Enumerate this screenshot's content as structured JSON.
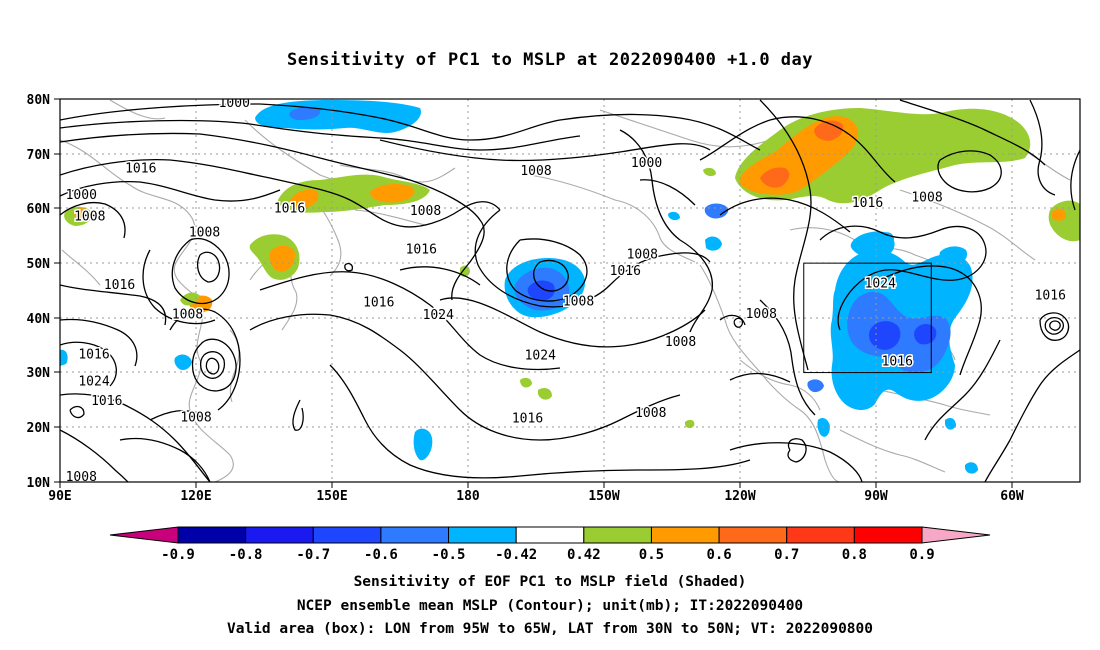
{
  "title": "Sensitivity of PC1 to MSLP at 2022090400 +1.0 day",
  "axes": {
    "lat_labels": [
      "80N",
      "70N",
      "60N",
      "50N",
      "40N",
      "30N",
      "20N",
      "10N"
    ],
    "lon_labels": [
      "90E",
      "120E",
      "150E",
      "180",
      "150W",
      "120W",
      "90W",
      "60W"
    ]
  },
  "contours": {
    "unit": "mb",
    "labels": [
      {
        "text": "1000",
        "lon": 131,
        "lat": 79.3
      },
      {
        "text": "1000",
        "lon": 228,
        "lat": 68.3
      },
      {
        "text": "1000",
        "lon": 95,
        "lat": 62.5
      },
      {
        "text": "1008",
        "lon": 202,
        "lat": 66.8
      },
      {
        "text": "1008",
        "lon": 97,
        "lat": 58.5
      },
      {
        "text": "1008",
        "lon": 124,
        "lat": 55.6
      },
      {
        "text": "1008",
        "lon": 176,
        "lat": 59.5
      },
      {
        "text": "1008",
        "lon": 227,
        "lat": 51.6
      },
      {
        "text": "1008",
        "lon": 212,
        "lat": 43.0
      },
      {
        "text": "1008",
        "lon": 120,
        "lat": 40.6
      },
      {
        "text": "1008",
        "lon": 236,
        "lat": 35.6
      },
      {
        "text": "1008",
        "lon": 255,
        "lat": 40.7
      },
      {
        "text": "1008",
        "lon": 122,
        "lat": 21.8
      },
      {
        "text": "1008",
        "lon": 229,
        "lat": 22.6
      },
      {
        "text": "1008",
        "lon": 294,
        "lat": 62.0
      },
      {
        "text": "1008",
        "lon": 95,
        "lat": 10.9
      },
      {
        "text": "1016",
        "lon": 109,
        "lat": 67.3
      },
      {
        "text": "1016",
        "lon": 144,
        "lat": 60.0
      },
      {
        "text": "1016",
        "lon": 175,
        "lat": 52.5
      },
      {
        "text": "1016",
        "lon": 104,
        "lat": 46.0
      },
      {
        "text": "1016",
        "lon": 165,
        "lat": 42.8
      },
      {
        "text": "1016",
        "lon": 98,
        "lat": 33.3
      },
      {
        "text": "1016",
        "lon": 101,
        "lat": 24.8
      },
      {
        "text": "1016",
        "lon": 223,
        "lat": 48.6
      },
      {
        "text": "1016",
        "lon": 280,
        "lat": 61.0
      },
      {
        "text": "1016",
        "lon": 287,
        "lat": 32.0
      },
      {
        "text": "1016",
        "lon": 323,
        "lat": 44.1
      },
      {
        "text": "1016",
        "lon": 200,
        "lat": 21.6
      },
      {
        "text": "1024",
        "lon": 98,
        "lat": 28.4
      },
      {
        "text": "1024",
        "lon": 179,
        "lat": 40.5
      },
      {
        "text": "1024",
        "lon": 203,
        "lat": 33.1
      },
      {
        "text": "1024",
        "lon": 283,
        "lat": 46.3
      }
    ]
  },
  "sensitivity_box": {
    "lon_min": -95,
    "lon_max": -65,
    "lat_min": 30,
    "lat_max": 50
  },
  "shaded_regions": [
    {
      "sign": "positive",
      "level": "0.5-0.6",
      "area": "Hudson Bay / northern Canada",
      "lon": [
        250,
        285
      ],
      "lat": [
        59,
        77
      ]
    },
    {
      "sign": "positive",
      "level": "0.6-0.7",
      "area": "northern Canada core",
      "lon": [
        257,
        275
      ],
      "lat": [
        61,
        75
      ]
    },
    {
      "sign": "positive",
      "level": "0.5-0.6",
      "area": "Kamchatka / Sea of Okhotsk",
      "lon": [
        143,
        170
      ],
      "lat": [
        58,
        64
      ]
    },
    {
      "sign": "positive",
      "level": "0.5-0.6",
      "area": "Japan / Kuril",
      "lon": [
        134,
        142
      ],
      "lat": [
        44,
        56
      ]
    },
    {
      "sign": "negative",
      "level": "-0.5 to -0.8",
      "area": "Gulf of Alaska low",
      "lon": [
        200,
        215
      ],
      "lat": [
        39,
        50
      ]
    },
    {
      "sign": "negative",
      "level": "-0.42 to -0.7",
      "area": "eastern United States",
      "lon": [
        268,
        294
      ],
      "lat": [
        18,
        56
      ]
    },
    {
      "sign": "negative",
      "level": "-0.42 to -0.6",
      "area": "Siberian coast",
      "lon": [
        130,
        158
      ],
      "lat": [
        75,
        80
      ]
    }
  ],
  "colorbar": {
    "labels": [
      "-0.9",
      "-0.8",
      "-0.7",
      "-0.6",
      "-0.5",
      "-0.42",
      "0.42",
      "0.5",
      "0.6",
      "0.7",
      "0.8",
      "0.9"
    ],
    "colors": [
      "#0000a8",
      "#1a1af0",
      "#1e46ff",
      "#2e7bff",
      "#00b4ff",
      "#ffffff",
      "#9acd32",
      "#ff9b00",
      "#ff6a1a",
      "#ff3818",
      "#ff0000"
    ],
    "low_end_color": "#c8007c",
    "high_end_color": "#f6a8c6"
  },
  "footer": {
    "line1": "Sensitivity of EOF PC1 to MSLP field (Shaded)",
    "line2": "NCEP ensemble mean MSLP (Contour); unit(mb); IT:2022090400",
    "line3": "Valid area (box): LON from 95W to 65W, LAT from 30N to 50N; VT: 2022090800"
  }
}
